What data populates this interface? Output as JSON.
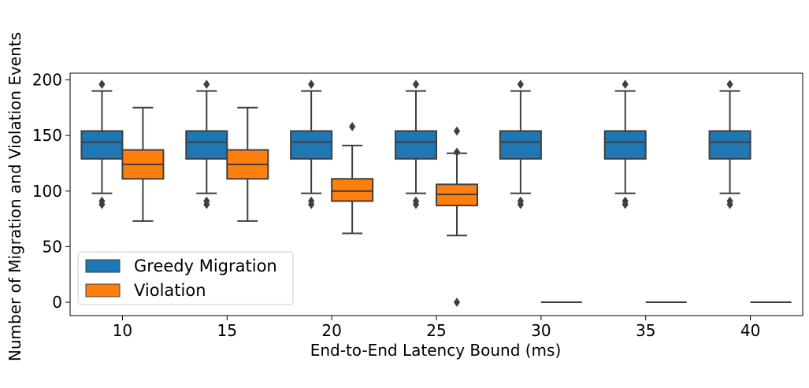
{
  "chart_data": {
    "type": "box",
    "xlabel": "End-to-End Latency Bound (ms)",
    "ylabel": "Number of Migration and Violation Events",
    "categories": [
      "10",
      "15",
      "20",
      "25",
      "30",
      "35",
      "40"
    ],
    "ylim": [
      -12,
      206
    ],
    "yticks": [
      0,
      50,
      100,
      150,
      200
    ],
    "legend_position": "lower-left",
    "grid": false,
    "series": [
      {
        "name": "Greedy Migration",
        "color": "#1f77b4",
        "boxes": [
          {
            "whislo": 98,
            "q1": 129,
            "med": 144,
            "q3": 154,
            "whishi": 190,
            "fliers": [
              196,
              91,
              88
            ]
          },
          {
            "whislo": 98,
            "q1": 129,
            "med": 144,
            "q3": 154,
            "whishi": 190,
            "fliers": [
              196,
              91,
              88
            ]
          },
          {
            "whislo": 98,
            "q1": 129,
            "med": 144,
            "q3": 154,
            "whishi": 190,
            "fliers": [
              196,
              91,
              88
            ]
          },
          {
            "whislo": 98,
            "q1": 129,
            "med": 144,
            "q3": 154,
            "whishi": 190,
            "fliers": [
              196,
              91,
              88
            ]
          },
          {
            "whislo": 98,
            "q1": 129,
            "med": 144,
            "q3": 154,
            "whishi": 190,
            "fliers": [
              196,
              91,
              88
            ]
          },
          {
            "whislo": 98,
            "q1": 129,
            "med": 144,
            "q3": 154,
            "whishi": 190,
            "fliers": [
              196,
              91,
              88
            ]
          },
          {
            "whislo": 98,
            "q1": 129,
            "med": 144,
            "q3": 154,
            "whishi": 190,
            "fliers": [
              196,
              91,
              88
            ]
          }
        ]
      },
      {
        "name": "Violation",
        "color": "#ff7f0e",
        "boxes": [
          {
            "whislo": 73,
            "q1": 111,
            "med": 124,
            "q3": 137,
            "whishi": 175,
            "fliers": []
          },
          {
            "whislo": 73,
            "q1": 111,
            "med": 124,
            "q3": 137,
            "whishi": 175,
            "fliers": []
          },
          {
            "whislo": 62,
            "q1": 91,
            "med": 100,
            "q3": 111,
            "whishi": 141,
            "fliers": [
              158
            ]
          },
          {
            "whislo": 60,
            "q1": 87,
            "med": 97,
            "q3": 106,
            "whishi": 134,
            "fliers": [
              154,
              135,
              0
            ]
          },
          {
            "whislo": 0,
            "q1": 0,
            "med": 0,
            "q3": 0,
            "whishi": 0,
            "fliers": []
          },
          {
            "whislo": 0,
            "q1": 0,
            "med": 0,
            "q3": 0,
            "whishi": 0,
            "fliers": []
          },
          {
            "whislo": 0,
            "q1": 0,
            "med": 0,
            "q3": 0,
            "whishi": 0,
            "fliers": []
          }
        ]
      }
    ]
  }
}
